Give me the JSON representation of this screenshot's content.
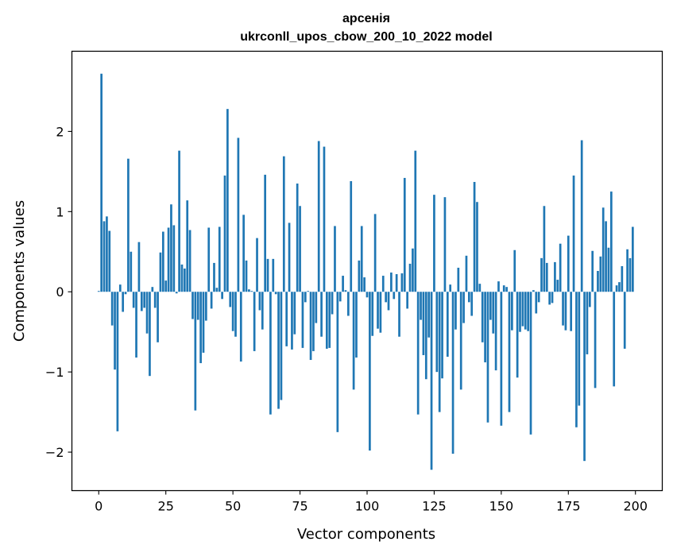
{
  "chart_data": {
    "type": "bar",
    "title_line1": "арсенія",
    "title_line2": "ukrconll_upos_cbow_200_10_2022 model",
    "xlabel": "Vector components",
    "ylabel": "Components values",
    "xlim": [
      -10,
      210
    ],
    "ylim": [
      -2.48,
      3.0
    ],
    "xticks": [
      0,
      25,
      50,
      75,
      100,
      125,
      150,
      175,
      200
    ],
    "yticks": [
      -2,
      -1,
      0,
      1,
      2
    ],
    "xtick_labels": [
      "0",
      "25",
      "50",
      "75",
      "100",
      "125",
      "150",
      "175",
      "200"
    ],
    "ytick_labels": [
      "−2",
      "−1",
      "0",
      "1",
      "2"
    ],
    "bar_color": "#1f77b4",
    "grid": false,
    "x": [
      0,
      1,
      2,
      3,
      4,
      5,
      6,
      7,
      8,
      9,
      10,
      11,
      12,
      13,
      14,
      15,
      16,
      17,
      18,
      19,
      20,
      21,
      22,
      23,
      24,
      25,
      26,
      27,
      28,
      29,
      30,
      31,
      32,
      33,
      34,
      35,
      36,
      37,
      38,
      39,
      40,
      41,
      42,
      43,
      44,
      45,
      46,
      47,
      48,
      49,
      50,
      51,
      52,
      53,
      54,
      55,
      56,
      57,
      58,
      59,
      60,
      61,
      62,
      63,
      64,
      65,
      66,
      67,
      68,
      69,
      70,
      71,
      72,
      73,
      74,
      75,
      76,
      77,
      78,
      79,
      80,
      81,
      82,
      83,
      84,
      85,
      86,
      87,
      88,
      89,
      90,
      91,
      92,
      93,
      94,
      95,
      96,
      97,
      98,
      99,
      100,
      101,
      102,
      103,
      104,
      105,
      106,
      107,
      108,
      109,
      110,
      111,
      112,
      113,
      114,
      115,
      116,
      117,
      118,
      119,
      120,
      121,
      122,
      123,
      124,
      125,
      126,
      127,
      128,
      129,
      130,
      131,
      132,
      133,
      134,
      135,
      136,
      137,
      138,
      139,
      140,
      141,
      142,
      143,
      144,
      145,
      146,
      147,
      148,
      149,
      150,
      151,
      152,
      153,
      154,
      155,
      156,
      157,
      158,
      159,
      160,
      161,
      162,
      163,
      164,
      165,
      166,
      167,
      168,
      169,
      170,
      171,
      172,
      173,
      174,
      175,
      176,
      177,
      178,
      179,
      180,
      181,
      182,
      183,
      184,
      185,
      186,
      187,
      188,
      189,
      190,
      191,
      192,
      193,
      194,
      195,
      196,
      197,
      198,
      199
    ],
    "values": [
      0.01,
      2.72,
      0.88,
      0.94,
      0.76,
      -0.42,
      -0.97,
      -1.74,
      0.09,
      -0.25,
      -0.03,
      1.66,
      0.5,
      -0.2,
      -0.82,
      0.62,
      -0.24,
      -0.2,
      -0.52,
      -1.05,
      0.06,
      -0.2,
      -0.63,
      0.49,
      0.75,
      0.14,
      0.8,
      1.09,
      0.83,
      -0.02,
      1.76,
      0.34,
      0.29,
      1.14,
      0.77,
      -0.34,
      -1.48,
      -0.35,
      -0.89,
      -0.76,
      -0.36,
      0.8,
      -0.21,
      0.36,
      0.05,
      0.81,
      -0.09,
      1.45,
      2.28,
      -0.19,
      -0.49,
      -0.56,
      1.92,
      -0.87,
      0.96,
      0.39,
      0.03,
      0.01,
      -0.74,
      0.67,
      -0.23,
      -0.47,
      1.46,
      0.41,
      -1.53,
      0.41,
      -0.03,
      -1.46,
      -1.35,
      1.69,
      -0.68,
      0.86,
      -0.72,
      -0.53,
      1.35,
      1.07,
      -0.7,
      -0.13,
      0.01,
      -0.85,
      -0.74,
      -0.39,
      1.88,
      -0.56,
      1.81,
      -0.71,
      -0.7,
      -0.28,
      0.82,
      -1.75,
      -0.12,
      0.2,
      0.02,
      -0.3,
      1.38,
      -1.22,
      -0.82,
      0.39,
      0.82,
      0.18,
      -0.07,
      -1.98,
      -0.55,
      0.97,
      -0.46,
      -0.51,
      0.2,
      -0.13,
      -0.23,
      0.24,
      -0.09,
      0.22,
      -0.56,
      0.23,
      1.42,
      -0.21,
      0.35,
      0.54,
      1.76,
      -1.53,
      -0.35,
      -0.79,
      -1.09,
      -0.57,
      -2.22,
      1.21,
      -1.0,
      -1.5,
      -1.08,
      1.18,
      -0.81,
      0.09,
      -2.02,
      -0.47,
      0.3,
      -1.22,
      -0.39,
      0.45,
      -0.13,
      -0.3,
      1.37,
      1.12,
      0.1,
      -0.63,
      -0.88,
      -1.63,
      -0.35,
      -0.52,
      -0.98,
      0.13,
      -1.67,
      0.08,
      0.06,
      -1.5,
      -0.48,
      0.52,
      -1.07,
      -0.5,
      -0.43,
      -0.47,
      -0.49,
      -1.78,
      0.02,
      -0.27,
      -0.13,
      0.42,
      1.07,
      0.36,
      -0.16,
      -0.14,
      0.37,
      0.15,
      0.6,
      -0.42,
      -0.48,
      0.7,
      -0.49,
      1.45,
      -1.69,
      -1.42,
      1.89,
      -2.11,
      -0.78,
      -0.19,
      0.51,
      -1.2,
      0.26,
      0.44,
      1.05,
      0.88,
      0.55,
      1.25,
      -1.18,
      0.08,
      0.12,
      0.32,
      -0.71,
      0.53,
      0.42,
      0.81
    ]
  }
}
